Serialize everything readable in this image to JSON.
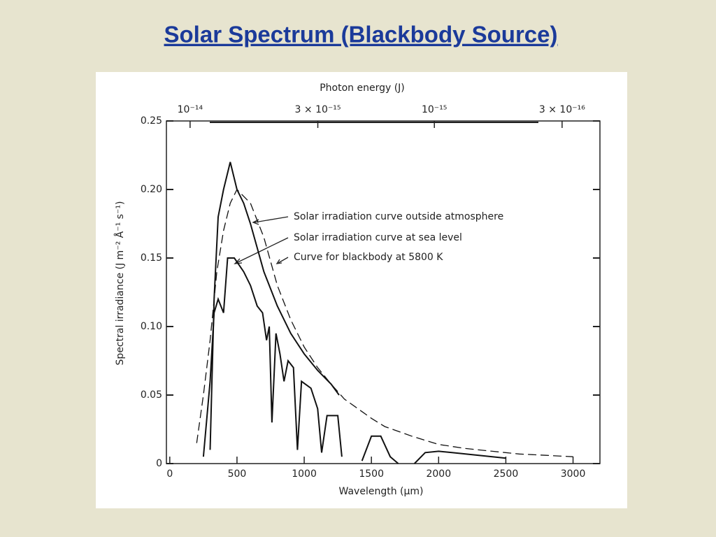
{
  "chart_data": {
    "type": "line",
    "title": "Solar Spectrum (Blackbody Source)",
    "x_label": "Wavelength (µm)",
    "y_label": "Spectral irradiance (J m⁻² Å⁻¹ s⁻¹)",
    "x2_label": "Photon energy (J)",
    "xlim": [
      -25,
      3200
    ],
    "xticks": [
      0,
      500,
      1000,
      1500,
      2000,
      2500,
      3000
    ],
    "ylim": [
      0,
      0.25
    ],
    "yticks": [
      0,
      0.05,
      {
        "value": 0.1,
        "label": "0.10"
      },
      0.15,
      {
        "value": 0.2,
        "label": "0.20"
      },
      0.25
    ],
    "x2lim": [
      1.25e-14,
      2.1e-16
    ],
    "x2log": true,
    "x2ticks": [
      {
        "value": 1e-14,
        "label": "10⁻¹⁴"
      },
      {
        "value": 3e-15,
        "label": "3 × 10⁻¹⁵"
      },
      {
        "value": 1e-15,
        "label": "10⁻¹⁵"
      },
      {
        "value": 3e-16,
        "label": "3 × 10⁻¹⁶"
      }
    ],
    "series": [
      {
        "name": "Solar irradiation curve outside atmosphere",
        "color": "#111111",
        "dashed": false,
        "x": [
          300,
          330,
          360,
          400,
          450,
          500,
          550,
          600,
          700,
          800,
          900,
          1000,
          1100,
          1200,
          1260
        ],
        "values": [
          0.01,
          0.12,
          0.18,
          0.2,
          0.22,
          0.2,
          0.19,
          0.175,
          0.14,
          0.115,
          0.095,
          0.08,
          0.068,
          0.058,
          0.05
        ]
      },
      {
        "name": "Solar irradiation curve at sea level",
        "color": "#111111",
        "dashed": false,
        "x": [
          250,
          300,
          330,
          360,
          400,
          430,
          480,
          550,
          600,
          650,
          690,
          720,
          740,
          760,
          790,
          820,
          850,
          880,
          920,
          950,
          980,
          1050,
          1100,
          1130,
          1170,
          1250,
          1280,
          1350,
          1430,
          1500,
          1570,
          1640,
          1700,
          1800,
          1820,
          1900,
          2000,
          2100,
          2300,
          2500
        ],
        "values": [
          0.005,
          0.06,
          0.11,
          0.12,
          0.11,
          0.15,
          0.15,
          0.14,
          0.13,
          0.115,
          0.11,
          0.09,
          0.1,
          0.03,
          0.095,
          0.08,
          0.06,
          0.075,
          0.07,
          0.01,
          0.06,
          0.055,
          0.04,
          0.008,
          0.035,
          0.035,
          0.005,
          null,
          0.002,
          0.02,
          0.02,
          0.005,
          0.0,
          null,
          0.0,
          0.008,
          0.009,
          0.008,
          0.006,
          0.004
        ]
      },
      {
        "name": "Curve for blackbody at 5800 K",
        "color": "#111111",
        "dashed": true,
        "x": [
          200,
          250,
          300,
          350,
          400,
          450,
          500,
          600,
          700,
          800,
          900,
          1000,
          1100,
          1200,
          1300,
          1400,
          1500,
          1600,
          1800,
          2000,
          2200,
          2400,
          2600,
          2800,
          3000
        ],
        "values": [
          0.015,
          0.05,
          0.09,
          0.14,
          0.17,
          0.19,
          0.2,
          0.19,
          0.165,
          0.13,
          0.105,
          0.085,
          0.07,
          0.058,
          0.047,
          0.04,
          0.033,
          0.027,
          0.02,
          0.014,
          0.011,
          0.009,
          0.007,
          0.006,
          0.005
        ]
      }
    ]
  }
}
